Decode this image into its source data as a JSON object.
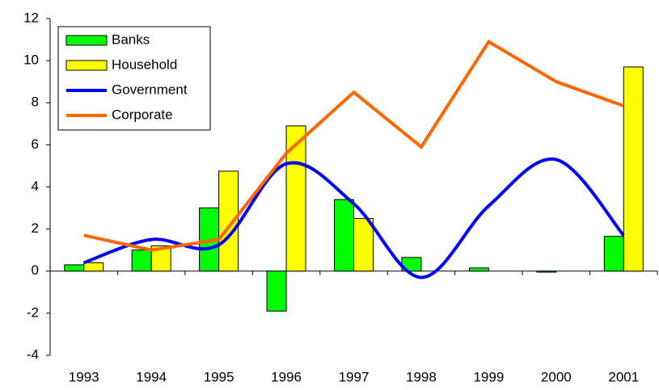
{
  "chart_data": {
    "type": "bar-line",
    "categories": [
      "1993",
      "1994",
      "1995",
      "1996",
      "1997",
      "1998",
      "1999",
      "2000",
      "2001"
    ],
    "series": [
      {
        "name": "Banks",
        "kind": "bar",
        "color": "#00ff00",
        "values": [
          0.3,
          1.0,
          3.0,
          -1.9,
          3.4,
          0.65,
          0.15,
          -0.05,
          1.65
        ]
      },
      {
        "name": "Household",
        "kind": "bar",
        "color": "#ffff00",
        "values": [
          0.4,
          1.2,
          4.75,
          6.9,
          2.5,
          null,
          null,
          null,
          9.7
        ]
      },
      {
        "name": "Government",
        "kind": "line",
        "smooth": true,
        "color": "#0000ff",
        "values": [
          0.4,
          1.5,
          1.25,
          5.1,
          3.2,
          -0.3,
          3.1,
          5.3,
          1.7
        ]
      },
      {
        "name": "Corporate",
        "kind": "line",
        "smooth": false,
        "color": "#ff6600",
        "values": [
          1.7,
          1.0,
          1.5,
          5.6,
          8.5,
          5.9,
          10.9,
          9.0,
          7.85
        ]
      }
    ],
    "ylim": [
      -4,
      12
    ],
    "yticks": [
      -4,
      -2,
      0,
      2,
      4,
      6,
      8,
      10,
      12
    ],
    "legend": "top-left"
  }
}
